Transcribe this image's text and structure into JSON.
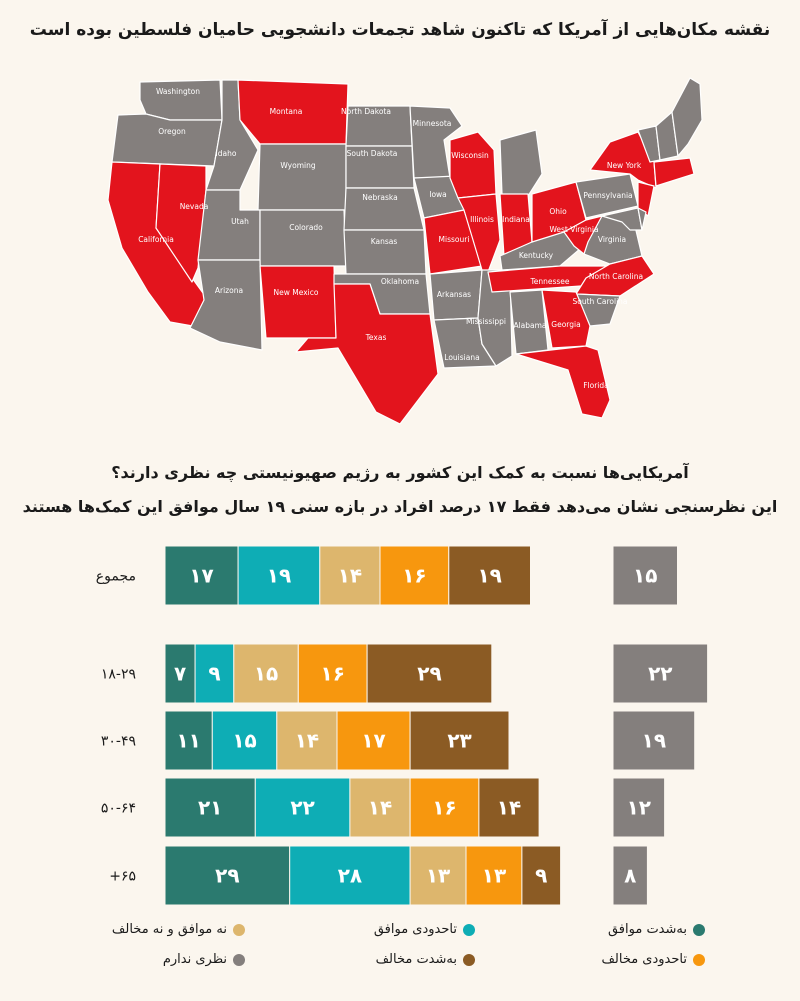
{
  "map": {
    "title": "نقشه مکان‌هایی از آمریکا که تاکنون شاهد تجمعات دانشجویی حامیان فلسطین بوده است",
    "colors": {
      "protest": "#e3141d",
      "none": "#847f7d",
      "border": "#ffffff"
    },
    "states": [
      {
        "id": "washington",
        "label": "Washington",
        "protest": false
      },
      {
        "id": "oregon",
        "label": "Oregon",
        "protest": false
      },
      {
        "id": "idaho",
        "label": "Idaho",
        "protest": false
      },
      {
        "id": "montana",
        "label": "Montana",
        "protest": true
      },
      {
        "id": "wyoming",
        "label": "Wyoming",
        "protest": false
      },
      {
        "id": "california",
        "label": "California",
        "protest": true
      },
      {
        "id": "nevada",
        "label": "Nevada",
        "protest": true
      },
      {
        "id": "utah",
        "label": "Utah",
        "protest": false
      },
      {
        "id": "colorado",
        "label": "Colorado",
        "protest": false
      },
      {
        "id": "arizona",
        "label": "Arizona",
        "protest": false
      },
      {
        "id": "newmexico",
        "label": "New Mexico",
        "protest": true
      },
      {
        "id": "northdakota",
        "label": "North Dakota",
        "protest": false
      },
      {
        "id": "southdakota",
        "label": "South Dakota",
        "protest": false
      },
      {
        "id": "nebraska",
        "label": "Nebraska",
        "protest": false
      },
      {
        "id": "kansas",
        "label": "Kansas",
        "protest": false
      },
      {
        "id": "oklahoma",
        "label": "Oklahoma",
        "protest": false
      },
      {
        "id": "texas",
        "label": "Texas",
        "protest": true
      },
      {
        "id": "minnesota",
        "label": "Minnesota",
        "protest": false
      },
      {
        "id": "iowa",
        "label": "Iowa",
        "protest": false
      },
      {
        "id": "missouri",
        "label": "Missouri",
        "protest": true
      },
      {
        "id": "arkansas",
        "label": "Arkansas",
        "protest": false
      },
      {
        "id": "louisiana",
        "label": "Louisiana",
        "protest": false
      },
      {
        "id": "wisconsin",
        "label": "Wisconsin",
        "protest": true
      },
      {
        "id": "illinois",
        "label": "Illinois",
        "protest": true
      },
      {
        "id": "mississippi",
        "label": "Mississippi",
        "protest": false
      },
      {
        "id": "michigan",
        "label": "",
        "protest": false
      },
      {
        "id": "indiana",
        "label": "Indiana",
        "protest": true
      },
      {
        "id": "kentucky",
        "label": "Kentucky",
        "protest": false
      },
      {
        "id": "tennessee",
        "label": "Tennessee",
        "protest": true
      },
      {
        "id": "alabama",
        "label": "Alabama",
        "protest": false
      },
      {
        "id": "ohio",
        "label": "Ohio",
        "protest": true
      },
      {
        "id": "westvirginia",
        "label": "West Virginia",
        "protest": true
      },
      {
        "id": "virginia",
        "label": "Virginia",
        "protest": false
      },
      {
        "id": "northcarolina",
        "label": "North Carolina",
        "protest": true
      },
      {
        "id": "southcarolina",
        "label": "South Carolina",
        "protest": false
      },
      {
        "id": "georgia",
        "label": "Georgia",
        "protest": true
      },
      {
        "id": "florida",
        "label": "Florida",
        "protest": true
      },
      {
        "id": "pennsylvania",
        "label": "Pennsylvania",
        "protest": false
      },
      {
        "id": "newyork",
        "label": "New York",
        "protest": true
      },
      {
        "id": "newjersey",
        "label": "",
        "protest": true
      },
      {
        "id": "maryland",
        "label": "",
        "protest": false
      },
      {
        "id": "delaware",
        "label": "",
        "protest": false
      },
      {
        "id": "newengland_south",
        "label": "",
        "protest": true
      },
      {
        "id": "vermont",
        "label": "",
        "protest": false
      },
      {
        "id": "newhampshire",
        "label": "",
        "protest": false
      },
      {
        "id": "maine",
        "label": "",
        "protest": false
      }
    ]
  },
  "survey": {
    "question": "آمریکایی‌ها نسبت به کمک این کشور به رژیم صهیونیستی چه نظری دارند؟",
    "subtitle": "این نظرسنجی نشان می‌دهد فقط ۱۷ درصد افراد در بازه سنی ۱۹ سال موافق این کمک‌ها هستند"
  },
  "chart_data": {
    "type": "bar",
    "stacked": true,
    "categories": [
      "مجموع",
      "۱۸-۲۹",
      "۳۰-۴۹",
      "۵۰-۶۴",
      "+۶۵"
    ],
    "series": [
      {
        "name": "به‌شدت موافق",
        "color": "#2b7a6f",
        "values": [
          17,
          7,
          11,
          21,
          29
        ]
      },
      {
        "name": "تاحدودی موافق",
        "color": "#0eadb5",
        "values": [
          19,
          9,
          15,
          22,
          28
        ]
      },
      {
        "name": "نه موافق و نه مخالف",
        "color": "#ddb66d",
        "values": [
          14,
          15,
          14,
          14,
          13
        ]
      },
      {
        "name": "تاحدودی مخالف",
        "color": "#f7970e",
        "values": [
          16,
          16,
          17,
          16,
          13
        ]
      },
      {
        "name": "به‌شدت مخالف",
        "color": "#8b5b24",
        "values": [
          19,
          29,
          23,
          14,
          9
        ]
      }
    ],
    "separate_series": {
      "name": "نظری ندارم",
      "color": "#847f7d",
      "values": [
        15,
        22,
        19,
        12,
        8
      ]
    },
    "value_labels": [
      [
        "۱۷",
        "۱۹",
        "۱۴",
        "۱۶",
        "۱۹"
      ],
      [
        "۷",
        "۹",
        "۱۵",
        "۱۶",
        "۲۹"
      ],
      [
        "۱۱",
        "۱۵",
        "۱۴",
        "۱۷",
        "۲۳"
      ],
      [
        "۲۱",
        "۲۲",
        "۱۴",
        "۱۶",
        "۱۴"
      ],
      [
        "۲۹",
        "۲۸",
        "۱۳",
        "۱۳",
        "۹"
      ]
    ],
    "separate_labels": [
      "۱۵",
      "۲۲",
      "۱۹",
      "۱۲",
      "۸"
    ]
  },
  "legend": {
    "items": [
      {
        "label": "به‌شدت موافق",
        "color": "#2b7a6f"
      },
      {
        "label": "تاحدودی موافق",
        "color": "#0eadb5"
      },
      {
        "label": "نه موافق و نه مخالف",
        "color": "#ddb66d"
      },
      {
        "label": "تاحدودی مخالف",
        "color": "#f7970e"
      },
      {
        "label": "به‌شدت مخالف",
        "color": "#8b5b24"
      },
      {
        "label": "نظری ندارم",
        "color": "#847f7d"
      }
    ]
  }
}
